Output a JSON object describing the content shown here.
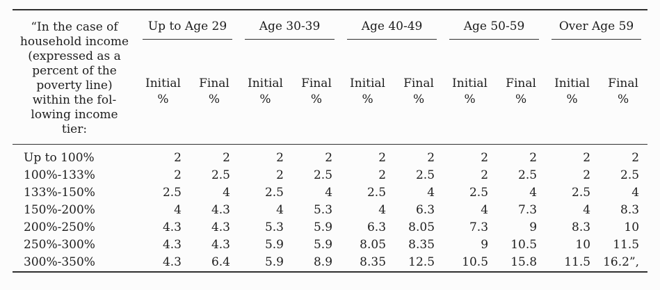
{
  "table": {
    "corner_header": "“In the case of\nhousehold income\n(expressed as a\npercent of the\npoverty line)\nwithin the fol-\nlowing income\ntier:",
    "groups": [
      {
        "label": "Up to Age 29"
      },
      {
        "label": "Age 30-39"
      },
      {
        "label": "Age 40-49"
      },
      {
        "label": "Age 50-59"
      },
      {
        "label": "Over Age 59"
      }
    ],
    "sub_header": {
      "initial": "Initial",
      "final": "Final",
      "percent": "%"
    },
    "rows": [
      {
        "tier": "Up to 100%",
        "values": [
          "2",
          "2",
          "2",
          "2",
          "2",
          "2",
          "2",
          "2",
          "2",
          "2"
        ]
      },
      {
        "tier": "100%-133%",
        "values": [
          "2",
          "2.5",
          "2",
          "2.5",
          "2",
          "2.5",
          "2",
          "2.5",
          "2",
          "2.5"
        ]
      },
      {
        "tier": "133%-150%",
        "values": [
          "2.5",
          "4",
          "2.5",
          "4",
          "2.5",
          "4",
          "2.5",
          "4",
          "2.5",
          "4"
        ]
      },
      {
        "tier": "150%-200%",
        "values": [
          "4",
          "4.3",
          "4",
          "5.3",
          "4",
          "6.3",
          "4",
          "7.3",
          "4",
          "8.3"
        ]
      },
      {
        "tier": "200%-250%",
        "values": [
          "4.3",
          "4.3",
          "5.3",
          "5.9",
          "6.3",
          "8.05",
          "7.3",
          "9",
          "8.3",
          "10"
        ]
      },
      {
        "tier": "250%-300%",
        "values": [
          "4.3",
          "4.3",
          "5.9",
          "5.9",
          "8.05",
          "8.35",
          "9",
          "10.5",
          "10",
          "11.5"
        ]
      },
      {
        "tier": "300%-350%",
        "values": [
          "4.3",
          "6.4",
          "5.9",
          "8.9",
          "8.35",
          "12.5",
          "10.5",
          "15.8",
          "11.5",
          "16.2”,"
        ]
      }
    ],
    "colors": {
      "text": "#1d1d1d",
      "rule": "#2e2e2e",
      "background": "#fcfcfc"
    }
  }
}
